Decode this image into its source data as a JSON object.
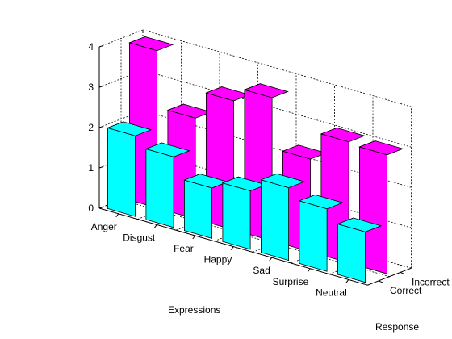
{
  "chart_data": {
    "type": "bar",
    "subtype": "3d-grouped",
    "title": "",
    "xlabel": "Expressions",
    "ylabel": "Response",
    "zlabel": "",
    "categories": [
      "Anger",
      "Disgust",
      "Fear",
      "Happy",
      "Sad",
      "Surprise",
      "Neutral"
    ],
    "rows": [
      "Correct",
      "Incorrect"
    ],
    "zlim": [
      0,
      4
    ],
    "zticks": [
      "0",
      "1",
      "2",
      "3",
      "4"
    ],
    "grid": true,
    "legend": "none",
    "series": [
      {
        "row": "Correct",
        "color": "#00ffff",
        "values": [
          2.0,
          1.75,
          1.25,
          1.45,
          1.8,
          1.55,
          1.25
        ]
      },
      {
        "row": "Incorrect",
        "color": "#ff00ff",
        "values": [
          3.9,
          2.5,
          3.2,
          3.55,
          2.3,
          3.0,
          2.95
        ]
      }
    ]
  }
}
